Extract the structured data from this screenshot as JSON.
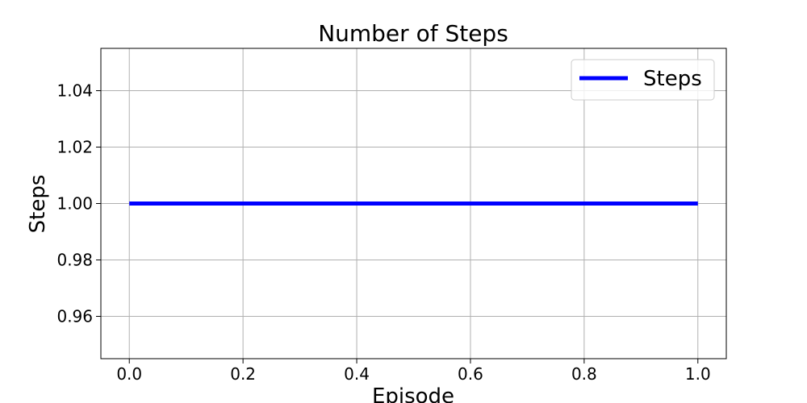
{
  "chart_data": {
    "type": "line",
    "title": "Number of Steps",
    "xlabel": "Episode",
    "ylabel": "Steps",
    "xlim": [
      -0.05,
      1.05
    ],
    "ylim": [
      0.945,
      1.055
    ],
    "x_ticks": [
      0.0,
      0.2,
      0.4,
      0.6,
      0.8,
      1.0
    ],
    "x_tick_labels": [
      "0.0",
      "0.2",
      "0.4",
      "0.6",
      "0.8",
      "1.0"
    ],
    "y_ticks": [
      0.96,
      0.98,
      1.0,
      1.02,
      1.04
    ],
    "y_tick_labels": [
      "0.96",
      "0.98",
      "1.00",
      "1.02",
      "1.04"
    ],
    "grid": true,
    "legend_position": "top-right",
    "series": [
      {
        "name": "Steps",
        "color": "#0000ff",
        "x": [
          0,
          1
        ],
        "y": [
          1,
          1
        ]
      }
    ]
  }
}
